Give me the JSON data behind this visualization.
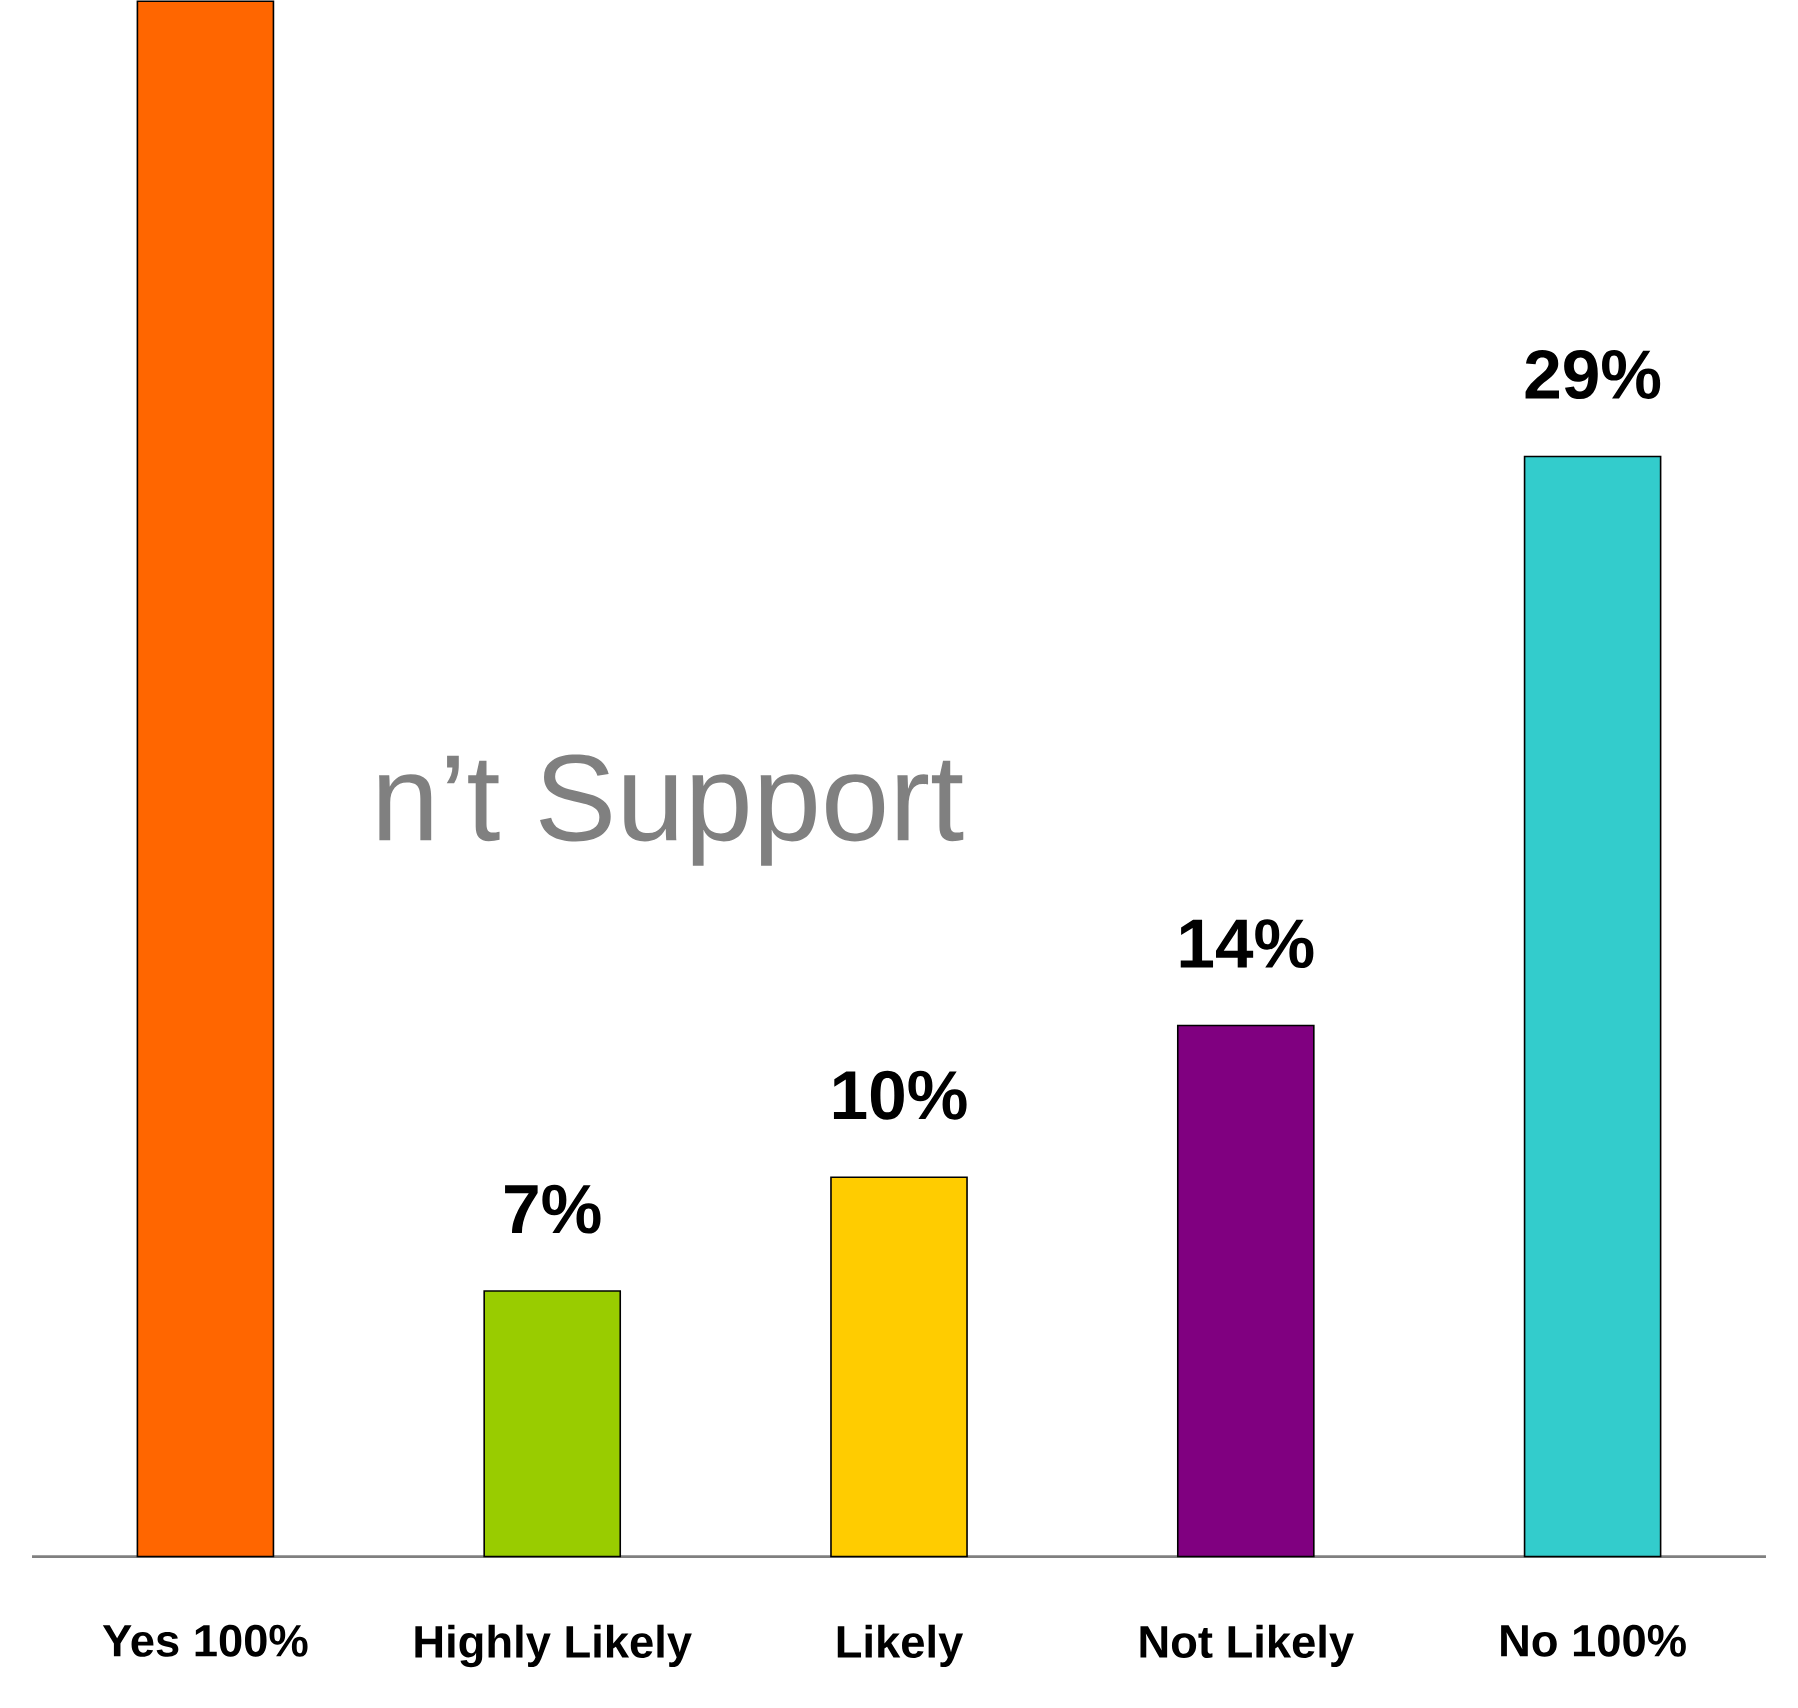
{
  "chart_data": {
    "type": "bar",
    "categories": [
      "Yes 100%",
      "Highly Likely",
      "Likely",
      "Not Likely",
      "No 100%"
    ],
    "values": [
      41,
      7,
      10,
      14,
      29
    ],
    "colors": [
      "#ff6600",
      "#99cc00",
      "#ffcc00",
      "#800080",
      "#33cccc"
    ],
    "value_labels": [
      null,
      "7%",
      "10%",
      "14%",
      "29%"
    ],
    "ylim": [
      0,
      41
    ],
    "tick_labels": "x",
    "annotations": [
      "n’t Support"
    ]
  }
}
